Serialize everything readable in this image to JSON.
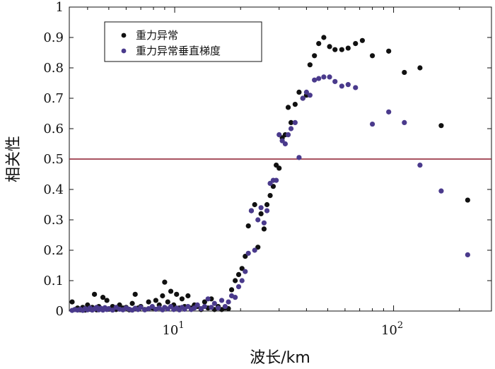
{
  "chart_data": {
    "type": "scatter",
    "title": "",
    "xlabel": "波长/km",
    "ylabel": "相关性",
    "xscale": "log",
    "xlim": [
      3.3,
      280
    ],
    "ylim": [
      0,
      1
    ],
    "y_ticks": [
      "0",
      "0.1",
      "0.2",
      "0.3",
      "0.4",
      "0.5",
      "0.6",
      "0.7",
      "0.8",
      "0.9",
      "1"
    ],
    "x_ticks": [
      {
        "value": 10,
        "base": "10",
        "exp": "1"
      },
      {
        "value": 100,
        "base": "10",
        "exp": "2"
      }
    ],
    "reference_line": {
      "y": 0.5,
      "color": "#8b1a2b"
    },
    "legend": {
      "position": "top-left"
    },
    "series": [
      {
        "name": "重力异常",
        "color": "#111111",
        "points": [
          [
            3.4,
            0.03
          ],
          [
            3.5,
            0.005
          ],
          [
            3.6,
            0.01
          ],
          [
            3.7,
            0.004
          ],
          [
            3.8,
            0.012
          ],
          [
            3.9,
            0.003
          ],
          [
            4.0,
            0.02
          ],
          [
            4.1,
            0.006
          ],
          [
            4.2,
            0.012
          ],
          [
            4.3,
            0.055
          ],
          [
            4.4,
            0.004
          ],
          [
            4.5,
            0.015
          ],
          [
            4.6,
            0.007
          ],
          [
            4.7,
            0.045
          ],
          [
            4.8,
            0.01
          ],
          [
            4.9,
            0.035
          ],
          [
            5.0,
            0.006
          ],
          [
            5.2,
            0.015
          ],
          [
            5.4,
            0.005
          ],
          [
            5.6,
            0.02
          ],
          [
            5.8,
            0.01
          ],
          [
            6.0,
            0.012
          ],
          [
            6.2,
            0.004
          ],
          [
            6.4,
            0.025
          ],
          [
            6.6,
            0.055
          ],
          [
            6.8,
            0.01
          ],
          [
            7.0,
            0.015
          ],
          [
            7.3,
            0.005
          ],
          [
            7.6,
            0.03
          ],
          [
            7.9,
            0.01
          ],
          [
            8.2,
            0.035
          ],
          [
            8.5,
            0.02
          ],
          [
            8.8,
            0.05
          ],
          [
            9.0,
            0.095
          ],
          [
            9.3,
            0.03
          ],
          [
            9.6,
            0.065
          ],
          [
            9.9,
            0.02
          ],
          [
            10.2,
            0.055
          ],
          [
            10.5,
            0.01
          ],
          [
            10.8,
            0.04
          ],
          [
            11.1,
            0.015
          ],
          [
            11.5,
            0.05
          ],
          [
            11.9,
            0.01
          ],
          [
            12.3,
            0.02
          ],
          [
            12.7,
            0.015
          ],
          [
            13.2,
            0.005
          ],
          [
            13.7,
            0.03
          ],
          [
            14.2,
            0.01
          ],
          [
            14.7,
            0.04
          ],
          [
            15.2,
            0.005
          ],
          [
            15.8,
            0.015
          ],
          [
            16.4,
            0.005
          ],
          [
            17.0,
            0.01
          ],
          [
            17.6,
            0.008
          ],
          [
            18.2,
            0.07
          ],
          [
            18.9,
            0.1
          ],
          [
            19.6,
            0.12
          ],
          [
            20.3,
            0.14
          ],
          [
            21.0,
            0.18
          ],
          [
            21.7,
            0.28
          ],
          [
            22.4,
            0.33
          ],
          [
            23.2,
            0.35
          ],
          [
            24.0,
            0.21
          ],
          [
            24.8,
            0.32
          ],
          [
            25.6,
            0.27
          ],
          [
            26.4,
            0.35
          ],
          [
            27.3,
            0.38
          ],
          [
            28.2,
            0.41
          ],
          [
            29.1,
            0.48
          ],
          [
            30.0,
            0.47
          ],
          [
            31.0,
            0.57
          ],
          [
            32.0,
            0.58
          ],
          [
            33.0,
            0.67
          ],
          [
            34.0,
            0.62
          ],
          [
            35.5,
            0.68
          ],
          [
            37.0,
            0.72
          ],
          [
            38.5,
            0.7
          ],
          [
            40.0,
            0.71
          ],
          [
            41.5,
            0.81
          ],
          [
            43.5,
            0.84
          ],
          [
            45.5,
            0.88
          ],
          [
            48.0,
            0.9
          ],
          [
            51.0,
            0.87
          ],
          [
            54.0,
            0.86
          ],
          [
            58.0,
            0.86
          ],
          [
            62.0,
            0.865
          ],
          [
            67.0,
            0.88
          ],
          [
            72.0,
            0.89
          ],
          [
            80.0,
            0.84
          ],
          [
            95.0,
            0.855
          ],
          [
            112.0,
            0.785
          ],
          [
            132.0,
            0.8
          ],
          [
            165.0,
            0.61
          ],
          [
            218.0,
            0.365
          ]
        ]
      },
      {
        "name": "重力异常垂直梯度",
        "color": "#4a3a8c",
        "points": [
          [
            3.4,
            0.002
          ],
          [
            3.5,
            0.005
          ],
          [
            3.6,
            0.003
          ],
          [
            3.7,
            0.006
          ],
          [
            3.8,
            0.002
          ],
          [
            3.9,
            0.008
          ],
          [
            4.0,
            0.004
          ],
          [
            4.1,
            0.01
          ],
          [
            4.2,
            0.003
          ],
          [
            4.3,
            0.007
          ],
          [
            4.4,
            0.012
          ],
          [
            4.5,
            0.004
          ],
          [
            4.6,
            0.009
          ],
          [
            4.7,
            0.003
          ],
          [
            4.8,
            0.011
          ],
          [
            4.9,
            0.005
          ],
          [
            5.0,
            0.008
          ],
          [
            5.2,
            0.003
          ],
          [
            5.4,
            0.012
          ],
          [
            5.6,
            0.006
          ],
          [
            5.8,
            0.004
          ],
          [
            6.0,
            0.01
          ],
          [
            6.2,
            0.006
          ],
          [
            6.4,
            0.003
          ],
          [
            6.6,
            0.009
          ],
          [
            6.8,
            0.005
          ],
          [
            7.0,
            0.012
          ],
          [
            7.3,
            0.004
          ],
          [
            7.6,
            0.008
          ],
          [
            7.9,
            0.015
          ],
          [
            8.2,
            0.006
          ],
          [
            8.5,
            0.01
          ],
          [
            8.8,
            0.004
          ],
          [
            9.0,
            0.012
          ],
          [
            9.3,
            0.007
          ],
          [
            9.6,
            0.015
          ],
          [
            9.9,
            0.005
          ],
          [
            10.2,
            0.01
          ],
          [
            10.5,
            0.004
          ],
          [
            10.8,
            0.012
          ],
          [
            11.1,
            0.006
          ],
          [
            11.5,
            0.015
          ],
          [
            11.9,
            0.005
          ],
          [
            12.3,
            0.01
          ],
          [
            12.7,
            0.02
          ],
          [
            13.2,
            0.008
          ],
          [
            13.7,
            0.015
          ],
          [
            14.2,
            0.04
          ],
          [
            14.7,
            0.012
          ],
          [
            15.2,
            0.025
          ],
          [
            15.8,
            0.01
          ],
          [
            16.4,
            0.035
          ],
          [
            17.0,
            0.015
          ],
          [
            17.6,
            0.03
          ],
          [
            18.2,
            0.05
          ],
          [
            18.9,
            0.045
          ],
          [
            19.6,
            0.08
          ],
          [
            20.3,
            0.1
          ],
          [
            21.0,
            0.13
          ],
          [
            21.7,
            0.19
          ],
          [
            22.4,
            0.33
          ],
          [
            23.2,
            0.2
          ],
          [
            24.0,
            0.3
          ],
          [
            24.8,
            0.34
          ],
          [
            25.6,
            0.29
          ],
          [
            26.4,
            0.33
          ],
          [
            27.3,
            0.42
          ],
          [
            28.2,
            0.43
          ],
          [
            29.1,
            0.43
          ],
          [
            30.0,
            0.58
          ],
          [
            31.0,
            0.56
          ],
          [
            32.0,
            0.55
          ],
          [
            33.0,
            0.58
          ],
          [
            34.0,
            0.6
          ],
          [
            35.5,
            0.62
          ],
          [
            37.0,
            0.505
          ],
          [
            38.5,
            0.7
          ],
          [
            40.0,
            0.72
          ],
          [
            41.5,
            0.71
          ],
          [
            43.5,
            0.76
          ],
          [
            45.5,
            0.765
          ],
          [
            48.0,
            0.77
          ],
          [
            51.0,
            0.77
          ],
          [
            54.0,
            0.755
          ],
          [
            58.0,
            0.74
          ],
          [
            62.0,
            0.745
          ],
          [
            67.0,
            0.735
          ],
          [
            80.0,
            0.615
          ],
          [
            95.0,
            0.655
          ],
          [
            112.0,
            0.62
          ],
          [
            132.0,
            0.48
          ],
          [
            165.0,
            0.395
          ],
          [
            218.0,
            0.185
          ]
        ]
      }
    ]
  }
}
